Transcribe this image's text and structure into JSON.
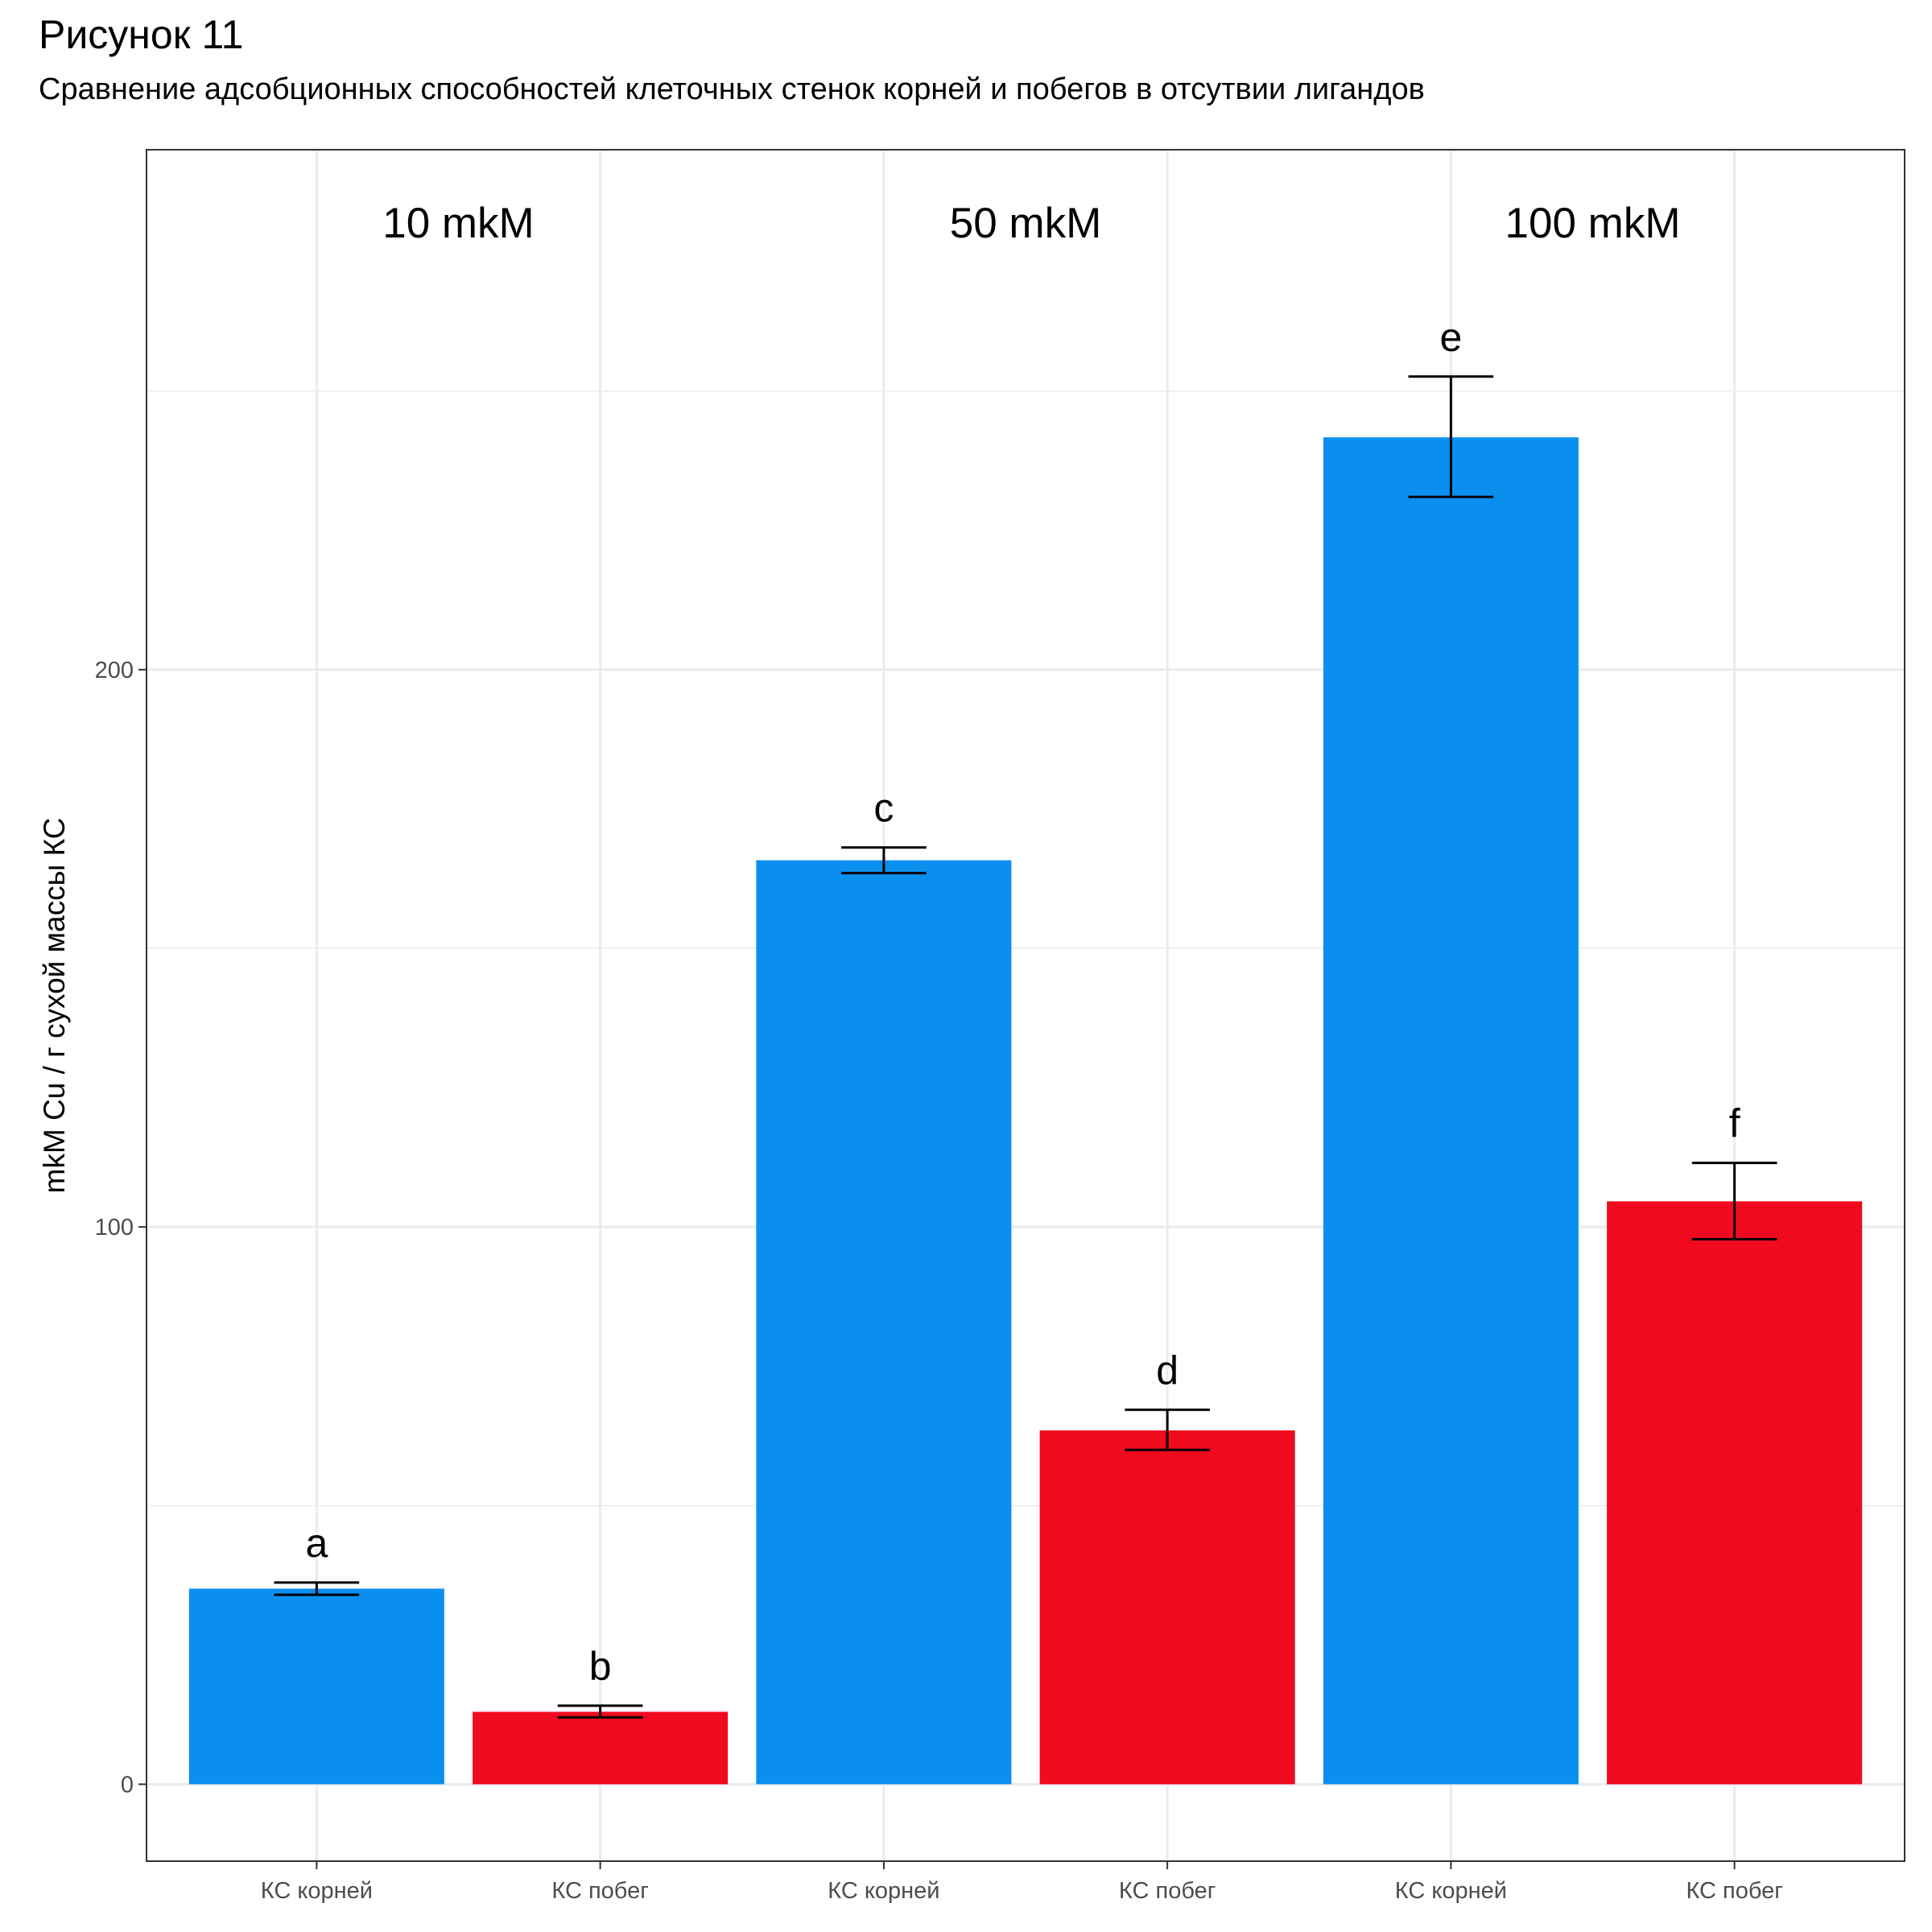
{
  "title": "Рисунок 11",
  "subtitle": "Сравнение адсобционных способностей клеточных стенок корней и побегов в отсутвии лигандов",
  "chart_data": {
    "type": "bar",
    "title": "Рисунок 11",
    "subtitle": "Сравнение адсобционных способностей клеточных стенок корней и побегов в отсутвии лигандов",
    "ylabel": "mkM Cu / г сухой массы КС",
    "xlabel": "",
    "categories": [
      "КС корней",
      "КС побег",
      "КС корней",
      "КС побег",
      "КС корней",
      "КС побег"
    ],
    "values": [
      35.1,
      13.0,
      165.8,
      63.5,
      241.7,
      104.6
    ],
    "error_low": [
      34.0,
      12.0,
      163.5,
      60.0,
      231.0,
      97.8
    ],
    "error_high": [
      36.2,
      14.1,
      168.1,
      67.2,
      252.6,
      111.5
    ],
    "significance_letters": [
      "a",
      "b",
      "c",
      "d",
      "e",
      "f"
    ],
    "bar_colors": [
      "#0a8fef",
      "#ef0a1e",
      "#0a8fef",
      "#ef0a1e",
      "#0a8fef",
      "#ef0a1e"
    ],
    "group_labels": [
      "10 mkM",
      "50 mkM",
      "100 mkM"
    ],
    "y_ticks": [
      0,
      100,
      200
    ],
    "ylim": [
      -13.8,
      293.3
    ],
    "grid": true
  }
}
